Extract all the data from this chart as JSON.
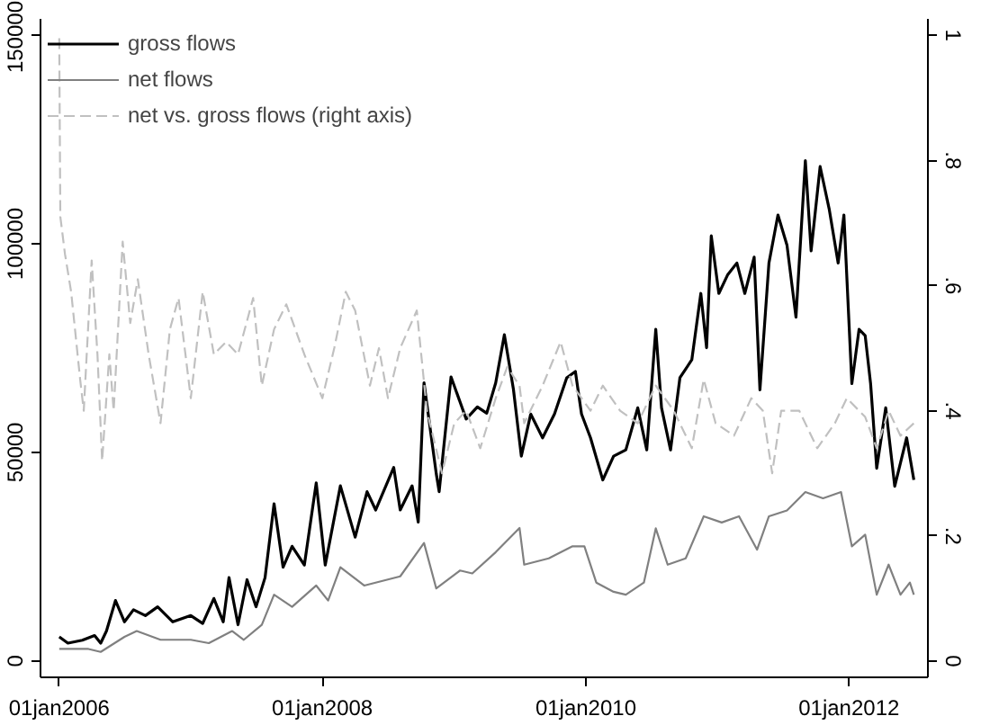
{
  "chart_data": {
    "type": "line",
    "xlim": [
      "2005-11-10",
      "2012-08-07"
    ],
    "xticks": [
      {
        "value": "2006-01-01",
        "label": "01jan2006"
      },
      {
        "value": "2008-01-01",
        "label": "01jan2008"
      },
      {
        "value": "2010-01-01",
        "label": "01jan2010"
      },
      {
        "value": "2012-01-01",
        "label": "01jan2012"
      }
    ],
    "ylim": [
      -3900,
      153900
    ],
    "yticks": [
      0,
      50000,
      100000,
      150000
    ],
    "y2lim": [
      -0.026,
      1.026
    ],
    "y2ticks": [
      0,
      {
        "value": 0.2,
        "label": ".2"
      },
      {
        "value": 0.4,
        "label": ".4"
      },
      {
        "value": 0.6,
        "label": ".6"
      },
      {
        "value": 0.8,
        "label": ".8"
      },
      1
    ],
    "grid": false,
    "legend": "top left",
    "series": [
      {
        "name": "gross flows",
        "color": "#000000",
        "line_style": "solid",
        "x": [
          "2006-01-01",
          "2006-01-25",
          "2006-03-06",
          "2006-04-09",
          "2006-04-26",
          "2006-05-12",
          "2006-06-06",
          "2006-07-01",
          "2006-07-26",
          "2006-08-28",
          "2006-10-01",
          "2006-11-12",
          "2007-01-01",
          "2007-02-03",
          "2007-03-06",
          "2007-04-01",
          "2007-04-17",
          "2007-05-12",
          "2007-06-06",
          "2007-07-01",
          "2007-07-26",
          "2007-08-20",
          "2007-09-14",
          "2007-10-09",
          "2007-11-12",
          "2007-12-15",
          "2008-01-09",
          "2008-02-20",
          "2008-04-01",
          "2008-05-04",
          "2008-05-28",
          "2008-07-17",
          "2008-08-04",
          "2008-09-06",
          "2008-09-23",
          "2008-10-09",
          "2008-11-12",
          "2008-11-20",
          "2008-12-23",
          "2009-02-03",
          "2009-03-06",
          "2009-04-01",
          "2009-04-26",
          "2009-05-20",
          "2009-06-14",
          "2009-07-06",
          "2009-08-01",
          "2009-09-03",
          "2009-10-06",
          "2009-11-09",
          "2009-12-03",
          "2009-12-20",
          "2010-01-14",
          "2010-02-17",
          "2010-03-19",
          "2010-04-22",
          "2010-05-25",
          "2010-06-19",
          "2010-07-14",
          "2010-07-30",
          "2010-08-24",
          "2010-09-19",
          "2010-10-22",
          "2010-11-16",
          "2010-12-02",
          "2010-12-15",
          "2011-01-05",
          "2011-01-29",
          "2011-02-24",
          "2011-03-18",
          "2011-04-13",
          "2011-04-29",
          "2011-05-24",
          "2011-06-18",
          "2011-07-13",
          "2011-08-07",
          "2011-09-02",
          "2011-09-18",
          "2011-10-13",
          "2011-11-07",
          "2011-12-02",
          "2011-12-18",
          "2012-01-09",
          "2012-01-29",
          "2012-02-15",
          "2012-03-01",
          "2012-03-18",
          "2012-04-12",
          "2012-05-07",
          "2012-06-09",
          "2012-06-29"
        ],
        "values": [
          5800,
          4300,
          5000,
          6100,
          4300,
          7200,
          14500,
          9400,
          12300,
          10900,
          13000,
          9400,
          10900,
          9000,
          15000,
          9400,
          20000,
          8700,
          19500,
          13000,
          20000,
          37700,
          22500,
          27500,
          23000,
          42700,
          23000,
          42000,
          29700,
          40600,
          36200,
          46400,
          36200,
          42000,
          33300,
          66700,
          44900,
          40600,
          68100,
          58000,
          60900,
          59400,
          66700,
          78200,
          65200,
          49100,
          59200,
          53500,
          59200,
          67900,
          69400,
          59200,
          53500,
          43400,
          49100,
          50600,
          60700,
          50600,
          79500,
          60700,
          50600,
          67900,
          72200,
          88100,
          75100,
          101900,
          88100,
          92500,
          95400,
          88100,
          96800,
          65000,
          95400,
          106900,
          99700,
          82400,
          119900,
          98300,
          118500,
          108400,
          95400,
          106900,
          66500,
          79500,
          78000,
          66500,
          46200,
          60700,
          41900,
          53500,
          43400
        ]
      },
      {
        "name": "net flows",
        "color": "#808080",
        "line_style": "solid",
        "x": [
          "2006-01-01",
          "2006-03-23",
          "2006-04-26",
          "2006-07-01",
          "2006-08-04",
          "2006-10-09",
          "2007-01-01",
          "2007-02-20",
          "2007-04-26",
          "2007-05-28",
          "2007-07-17",
          "2007-08-20",
          "2007-10-09",
          "2007-12-15",
          "2008-01-17",
          "2008-02-20",
          "2008-04-26",
          "2008-08-04",
          "2008-10-09",
          "2008-11-12",
          "2009-01-17",
          "2009-02-20",
          "2009-04-26",
          "2009-07-01",
          "2009-07-14",
          "2009-09-20",
          "2009-11-25",
          "2009-12-28",
          "2010-01-30",
          "2010-03-19",
          "2010-04-22",
          "2010-06-11",
          "2010-07-14",
          "2010-08-16",
          "2010-10-05",
          "2010-11-24",
          "2011-01-13",
          "2011-03-02",
          "2011-04-21",
          "2011-05-24",
          "2011-07-13",
          "2011-09-02",
          "2011-10-21",
          "2011-12-10",
          "2012-01-09",
          "2012-02-15",
          "2012-03-18",
          "2012-04-20",
          "2012-05-23",
          "2012-06-18",
          "2012-06-29"
        ],
        "values": [
          2900,
          2900,
          2200,
          5800,
          7200,
          5100,
          5100,
          4300,
          7200,
          5100,
          8700,
          15900,
          13000,
          18100,
          14500,
          22500,
          18100,
          20300,
          28300,
          17400,
          21700,
          21000,
          26100,
          31900,
          23100,
          24600,
          27500,
          27500,
          18800,
          16600,
          15900,
          18800,
          31800,
          23100,
          24600,
          34700,
          33200,
          34700,
          26700,
          34700,
          36100,
          40500,
          39000,
          40500,
          27500,
          30300,
          15900,
          23100,
          15900,
          18800,
          15900
        ]
      },
      {
        "name": "net vs. gross flows (right axis)",
        "color": "#c0c0c0",
        "line_style": "dashed",
        "axis": "y2",
        "x": [
          "2006-01-01",
          "2006-01-04",
          "2006-01-17",
          "2006-02-03",
          "2006-02-28",
          "2006-03-10",
          "2006-04-01",
          "2006-04-17",
          "2006-04-30",
          "2006-05-20",
          "2006-06-01",
          "2006-06-26",
          "2006-07-17",
          "2006-08-07",
          "2006-09-06",
          "2006-10-09",
          "2006-11-04",
          "2006-11-28",
          "2007-01-01",
          "2007-02-03",
          "2007-03-06",
          "2007-04-09",
          "2007-05-12",
          "2007-06-23",
          "2007-07-17",
          "2007-08-20",
          "2007-09-23",
          "2007-11-12",
          "2008-01-01",
          "2008-02-03",
          "2008-03-06",
          "2008-04-01",
          "2008-05-12",
          "2008-06-06",
          "2008-07-01",
          "2008-08-04",
          "2008-09-19",
          "2008-10-17",
          "2008-11-28",
          "2009-01-01",
          "2009-02-03",
          "2009-03-14",
          "2009-04-26",
          "2009-05-28",
          "2009-07-01",
          "2009-07-14",
          "2009-09-03",
          "2009-10-23",
          "2009-11-25",
          "2010-01-14",
          "2010-02-17",
          "2010-04-06",
          "2010-05-25",
          "2010-07-14",
          "2010-09-02",
          "2010-10-22",
          "2010-11-24",
          "2010-12-27",
          "2011-02-16",
          "2011-04-05",
          "2011-05-07",
          "2011-06-02",
          "2011-06-27",
          "2011-08-16",
          "2011-10-05",
          "2011-11-23",
          "2011-12-26",
          "2012-02-15",
          "2012-03-18",
          "2012-04-20",
          "2012-05-23",
          "2012-06-29"
        ],
        "values": [
          0.995,
          0.71,
          0.65,
          0.59,
          0.45,
          0.4,
          0.64,
          0.49,
          0.32,
          0.49,
          0.4,
          0.67,
          0.54,
          0.61,
          0.49,
          0.38,
          0.53,
          0.58,
          0.42,
          0.59,
          0.49,
          0.51,
          0.49,
          0.58,
          0.44,
          0.53,
          0.57,
          0.49,
          0.42,
          0.5,
          0.59,
          0.56,
          0.44,
          0.5,
          0.42,
          0.5,
          0.56,
          0.4,
          0.3,
          0.38,
          0.4,
          0.34,
          0.42,
          0.47,
          0.44,
          0.38,
          0.44,
          0.51,
          0.44,
          0.4,
          0.44,
          0.4,
          0.38,
          0.44,
          0.4,
          0.34,
          0.45,
          0.38,
          0.36,
          0.42,
          0.4,
          0.3,
          0.4,
          0.4,
          0.34,
          0.38,
          0.42,
          0.39,
          0.34,
          0.4,
          0.36,
          0.38
        ]
      }
    ]
  }
}
